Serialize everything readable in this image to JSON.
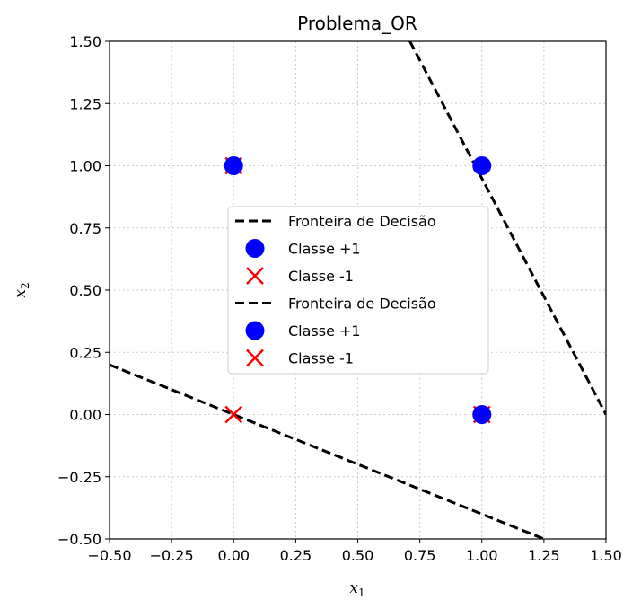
{
  "chart_data": {
    "type": "scatter",
    "title": "Problema_OR",
    "xlabel": {
      "base": "x",
      "sub": "1"
    },
    "ylabel": {
      "base": "x",
      "sub": "2"
    },
    "xlim": [
      -0.5,
      1.5
    ],
    "ylim": [
      -0.5,
      1.5
    ],
    "xticks": [
      "−0.50",
      "−0.25",
      "0.00",
      "0.25",
      "0.50",
      "0.75",
      "1.00",
      "1.25",
      "1.50"
    ],
    "yticks": [
      "−0.50",
      "−0.25",
      "0.00",
      "0.25",
      "0.50",
      "0.75",
      "1.00",
      "1.25",
      "1.50"
    ],
    "grid": true,
    "legend_position": "center",
    "lines": [
      {
        "name": "Fronteira de Decisão",
        "color": "#000000",
        "style": "dashed",
        "x": [
          -0.5,
          1.25
        ],
        "y": [
          0.2,
          -0.5
        ]
      },
      {
        "name": "Fronteira de Decisão",
        "color": "#000000",
        "style": "dashed",
        "x": [
          0.71,
          1.5
        ],
        "y": [
          1.5,
          0.0
        ]
      }
    ],
    "series": [
      {
        "name": "Classe +1",
        "marker": "circle",
        "color": "#0000ff",
        "x": [
          0,
          1,
          1
        ],
        "y": [
          1,
          1,
          0
        ]
      },
      {
        "name": "Classe -1",
        "marker": "x",
        "color": "#ff0000",
        "x": [
          0,
          0,
          1
        ],
        "y": [
          0,
          1,
          0
        ]
      }
    ],
    "legend": [
      {
        "label": "Fronteira de Decisão",
        "kind": "line"
      },
      {
        "label": "Classe +1",
        "kind": "circle"
      },
      {
        "label": "Classe -1",
        "kind": "x"
      },
      {
        "label": "Fronteira de Decisão",
        "kind": "line"
      },
      {
        "label": "Classe +1",
        "kind": "circle"
      },
      {
        "label": "Classe -1",
        "kind": "x"
      }
    ]
  }
}
